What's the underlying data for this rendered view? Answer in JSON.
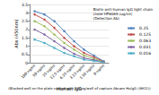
{
  "chart_data": {
    "type": "line",
    "title": "Biotin anti-human IgG light chain\nclone HP6069 (ug/ml)\n(Detection Ab)",
    "subtitle": "(Blocked well on the plate coated with 100ng/well of capture Abcam HuIgG (4H11))",
    "x_label": "Human IgG",
    "y_label": "Abs (450nm)",
    "categories": [
      "100 ng/ml",
      "50 ng/ml",
      "25 ng/ml",
      "12.5 ng/ml",
      "6.25 ng/ml",
      "3.13 ng/ml",
      "1.56 ng/ml",
      "0 ng/ml"
    ],
    "series": [
      {
        "name": "0.25",
        "color": "#4F81BD",
        "values": [
          3.1,
          2.9,
          2.5,
          1.9,
          1.3,
          0.8,
          0.45,
          0.1
        ]
      },
      {
        "name": "0.125",
        "color": "#C0504D",
        "values": [
          2.9,
          2.6,
          2.1,
          1.5,
          1.0,
          0.6,
          0.35,
          0.08
        ]
      },
      {
        "name": "0.063",
        "color": "#9BBB59",
        "values": [
          2.5,
          2.2,
          1.7,
          1.2,
          0.8,
          0.45,
          0.25,
          0.06
        ]
      },
      {
        "name": "0.031",
        "color": "#8064A2",
        "values": [
          2.0,
          1.7,
          1.3,
          0.9,
          0.55,
          0.3,
          0.18,
          0.05
        ]
      },
      {
        "name": "0.016",
        "color": "#4BACC6",
        "values": [
          1.4,
          1.2,
          0.9,
          0.6,
          0.4,
          0.2,
          0.12,
          0.04
        ]
      }
    ],
    "ylim": [
      0,
      3.5
    ],
    "yticks": [
      0,
      0.5,
      1,
      1.5,
      2,
      2.5,
      3,
      3.5
    ],
    "grid": true,
    "legend": "right",
    "marker": "circle"
  }
}
